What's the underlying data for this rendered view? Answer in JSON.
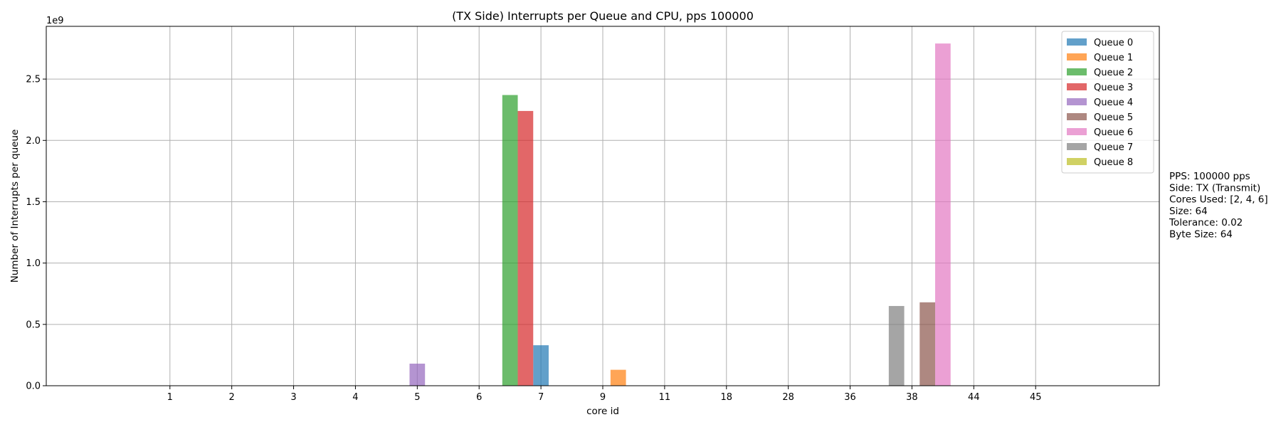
{
  "chart_data": {
    "type": "bar",
    "title": "(TX Side) Interrupts per Queue and CPU, pps 100000",
    "xlabel": "core id",
    "ylabel": "Number of Interrupts per queue",
    "y_scale_label": "1e9",
    "y_scale": 1000000000,
    "ylim": [
      0,
      2.93
    ],
    "yticks": [
      0.0,
      0.5,
      1.0,
      1.5,
      2.0,
      2.5
    ],
    "ytick_labels": [
      "0.0",
      "0.5",
      "1.0",
      "1.5",
      "2.0",
      "2.5"
    ],
    "categories": [
      "1",
      "2",
      "3",
      "4",
      "5",
      "6",
      "7",
      "9",
      "11",
      "18",
      "28",
      "36",
      "38",
      "44",
      "45"
    ],
    "xlim": [
      -2,
      16
    ],
    "grid": true,
    "legend_position": "upper right",
    "series": [
      {
        "name": "Queue 0",
        "color": "#1f77b4",
        "values": [
          0,
          0,
          0,
          0,
          0,
          0,
          0,
          0.33,
          0,
          0,
          0,
          0,
          0,
          0,
          0
        ]
      },
      {
        "name": "Queue 1",
        "color": "#ff7f0e",
        "values": [
          0,
          0,
          0,
          0,
          0,
          0,
          0,
          0,
          0.13,
          0,
          0,
          0,
          0,
          0,
          0
        ]
      },
      {
        "name": "Queue 2",
        "color": "#2ca02c",
        "values": [
          0,
          0,
          0,
          0,
          0,
          0,
          2.37,
          0,
          0,
          0,
          0,
          0,
          0,
          0,
          0
        ]
      },
      {
        "name": "Queue 3",
        "color": "#d62728",
        "values": [
          0,
          0,
          0,
          0,
          0,
          0,
          2.24,
          0,
          0,
          0,
          0,
          0,
          0,
          0,
          0
        ]
      },
      {
        "name": "Queue 4",
        "color": "#9467bd",
        "values": [
          0,
          0,
          0,
          0,
          0.18,
          0,
          0,
          0,
          0,
          0,
          0,
          0,
          0,
          0,
          0
        ]
      },
      {
        "name": "Queue 5",
        "color": "#8c564b",
        "values": [
          0,
          0,
          0,
          0,
          0,
          0,
          0,
          0,
          0,
          0,
          0,
          0,
          0.68,
          0,
          0
        ]
      },
      {
        "name": "Queue 6",
        "color": "#e377c2",
        "values": [
          0,
          0,
          0,
          0,
          0,
          0,
          0,
          0,
          0,
          0,
          0,
          0,
          2.79,
          0,
          0
        ]
      },
      {
        "name": "Queue 7",
        "color": "#7f7f7f",
        "values": [
          0,
          0,
          0,
          0,
          0,
          0,
          0,
          0,
          0,
          0,
          0,
          0.65,
          0,
          0,
          0
        ]
      },
      {
        "name": "Queue 8",
        "color": "#bcbd22",
        "values": [
          0,
          0,
          0,
          0,
          0,
          0,
          0,
          0,
          0,
          0,
          0,
          0,
          0,
          0,
          0
        ]
      }
    ],
    "bar_alpha": 0.7,
    "annotation_lines": [
      "PPS: 100000 pps",
      "Side: TX (Transmit)",
      "Cores Used: [2, 4, 6]",
      "Size: 64",
      "Tolerance: 0.02",
      "Byte Size: 64"
    ]
  }
}
